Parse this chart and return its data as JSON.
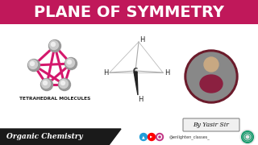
{
  "title": "PLANE OF SYMMETRY",
  "title_bg": "#c0185a",
  "title_color": "#ffffff",
  "body_bg": "#ffffff",
  "bottom_bg": "#1a1a1a",
  "bottom_text": "Organic Chemistry",
  "bottom_text_color": "#ffffff",
  "sub_label": "TETRAHEDRAL MOLECULES",
  "sub_label_color": "#1a1a1a",
  "by_yasir": "By Yasir Sir",
  "handle_text": "@enlighten_classes_",
  "tetra_color": "#d4186c",
  "tetra_node_color": "#cccccc",
  "molecule_line_color": "#aaaaaa",
  "molecule_bond_color": "#222222"
}
